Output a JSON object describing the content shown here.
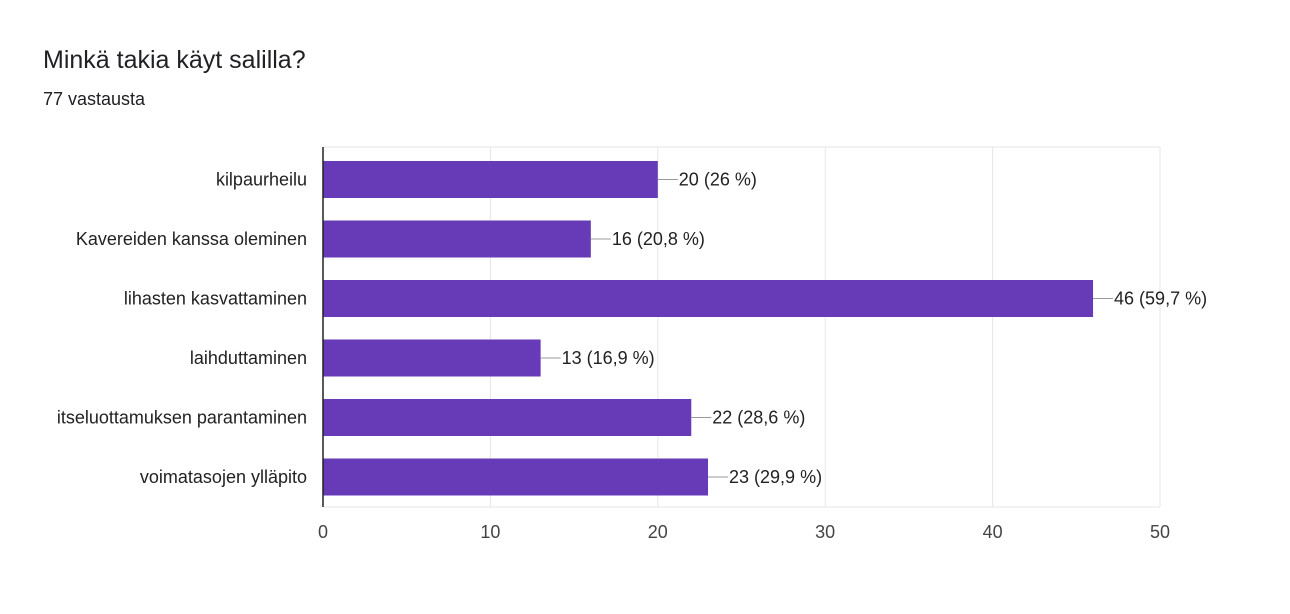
{
  "header": {
    "title": "Minkä takia käyt salilla?",
    "subtitle": "77 vastausta"
  },
  "colors": {
    "bar": "#673ab7",
    "grid": "#e6e6e6",
    "axis": "#222222",
    "leader": "#999999"
  },
  "chart_data": {
    "type": "bar",
    "orientation": "horizontal",
    "title": "Minkä takia käyt salilla?",
    "subtitle": "77 vastausta",
    "categories": [
      "kilpaurheilu",
      "Kavereiden kanssa oleminen",
      "lihasten kasvattaminen",
      "laihduttaminen",
      "itseluottamuksen parantaminen",
      "voimatasojen ylläpito"
    ],
    "values": [
      20,
      16,
      46,
      13,
      22,
      23
    ],
    "value_labels": [
      "20 (26 %)",
      "16 (20,8 %)",
      "46 (59,7 %)",
      "13 (16,9 %)",
      "22 (28,6 %)",
      "23 (29,9 %)"
    ],
    "xlim": [
      0,
      50
    ],
    "xticks": [
      0,
      10,
      20,
      30,
      40,
      50
    ],
    "grid": true,
    "legend": "none"
  }
}
